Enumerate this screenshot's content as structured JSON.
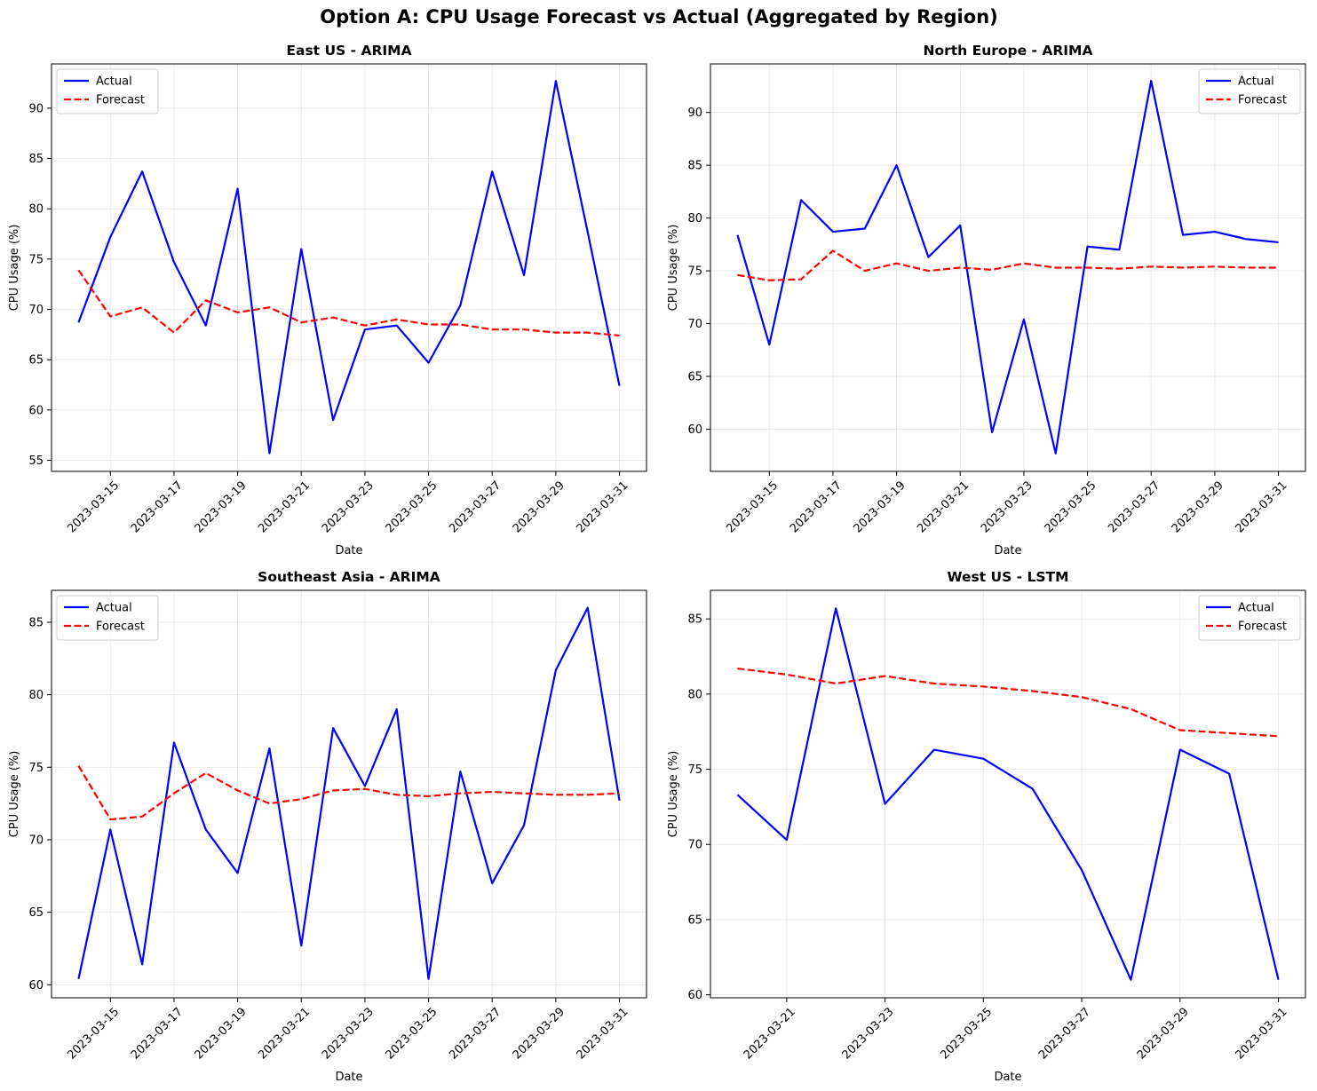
{
  "figure": {
    "title": "Option A: CPU Usage Forecast vs Actual (Aggregated by Region)"
  },
  "colors": {
    "actual": "#0000ff",
    "forecast": "#ff0000",
    "grid": "#e6e6e6"
  },
  "chart_data": [
    {
      "type": "line",
      "title": "East US - ARIMA",
      "xlabel": "Date",
      "ylabel": "CPU Usage (%)",
      "x_dates": [
        "2023-03-14",
        "2023-03-15",
        "2023-03-16",
        "2023-03-17",
        "2023-03-18",
        "2023-03-19",
        "2023-03-20",
        "2023-03-21",
        "2023-03-22",
        "2023-03-23",
        "2023-03-24",
        "2023-03-25",
        "2023-03-26",
        "2023-03-27",
        "2023-03-28",
        "2023-03-29",
        "2023-03-30",
        "2023-03-31"
      ],
      "x_ticks": [
        "2023-03-15",
        "2023-03-17",
        "2023-03-19",
        "2023-03-21",
        "2023-03-23",
        "2023-03-25",
        "2023-03-27",
        "2023-03-29",
        "2023-03-31"
      ],
      "xlim": [
        "2023-03-13.15",
        "2023-03-31.85"
      ],
      "ylim": [
        53.9,
        94.4
      ],
      "y_ticks": [
        55,
        60,
        65,
        70,
        75,
        80,
        85,
        90
      ],
      "legend": "upper-left",
      "grid": true,
      "series": [
        {
          "name": "Actual",
          "style": "solid",
          "values": [
            68.7,
            77.2,
            83.7,
            74.7,
            68.4,
            82.0,
            55.7,
            76.0,
            59.0,
            68.0,
            68.4,
            64.7,
            70.4,
            83.7,
            73.4,
            92.7,
            77.7,
            62.4
          ]
        },
        {
          "name": "Forecast",
          "style": "dashed",
          "values": [
            73.9,
            69.3,
            70.2,
            67.7,
            70.9,
            69.7,
            70.2,
            68.7,
            69.2,
            68.4,
            69.0,
            68.5,
            68.5,
            68.0,
            68.0,
            67.7,
            67.7,
            67.4
          ]
        }
      ]
    },
    {
      "type": "line",
      "title": "North Europe - ARIMA",
      "xlabel": "Date",
      "ylabel": "CPU Usage (%)",
      "x_dates": [
        "2023-03-14",
        "2023-03-15",
        "2023-03-16",
        "2023-03-17",
        "2023-03-18",
        "2023-03-19",
        "2023-03-20",
        "2023-03-21",
        "2023-03-22",
        "2023-03-23",
        "2023-03-24",
        "2023-03-25",
        "2023-03-26",
        "2023-03-27",
        "2023-03-28",
        "2023-03-29",
        "2023-03-30",
        "2023-03-31"
      ],
      "x_ticks": [
        "2023-03-15",
        "2023-03-17",
        "2023-03-19",
        "2023-03-21",
        "2023-03-23",
        "2023-03-25",
        "2023-03-27",
        "2023-03-29",
        "2023-03-31"
      ],
      "xlim": [
        "2023-03-13.15",
        "2023-03-31.85"
      ],
      "ylim": [
        56.0,
        94.6
      ],
      "y_ticks": [
        60,
        65,
        70,
        75,
        80,
        85,
        90
      ],
      "legend": "upper-right",
      "grid": true,
      "series": [
        {
          "name": "Actual",
          "style": "solid",
          "values": [
            78.4,
            68.0,
            81.7,
            78.7,
            79.0,
            85.0,
            76.3,
            79.3,
            59.7,
            70.4,
            57.7,
            77.3,
            77.0,
            93.0,
            78.4,
            78.7,
            78.0,
            77.7
          ]
        },
        {
          "name": "Forecast",
          "style": "dashed",
          "values": [
            74.6,
            74.1,
            74.2,
            76.9,
            75.0,
            75.7,
            75.0,
            75.3,
            75.1,
            75.7,
            75.3,
            75.3,
            75.2,
            75.4,
            75.3,
            75.4,
            75.3,
            75.3
          ]
        }
      ]
    },
    {
      "type": "line",
      "title": "Southeast Asia - ARIMA",
      "xlabel": "Date",
      "ylabel": "CPU Usage (%)",
      "x_dates": [
        "2023-03-14",
        "2023-03-15",
        "2023-03-16",
        "2023-03-17",
        "2023-03-18",
        "2023-03-19",
        "2023-03-20",
        "2023-03-21",
        "2023-03-22",
        "2023-03-23",
        "2023-03-24",
        "2023-03-25",
        "2023-03-26",
        "2023-03-27",
        "2023-03-28",
        "2023-03-29",
        "2023-03-30",
        "2023-03-31"
      ],
      "x_ticks": [
        "2023-03-15",
        "2023-03-17",
        "2023-03-19",
        "2023-03-21",
        "2023-03-23",
        "2023-03-25",
        "2023-03-27",
        "2023-03-29",
        "2023-03-31"
      ],
      "xlim": [
        "2023-03-13.15",
        "2023-03-31.85"
      ],
      "ylim": [
        59.1,
        87.2
      ],
      "y_ticks": [
        60,
        65,
        70,
        75,
        80,
        85
      ],
      "legend": "upper-left",
      "grid": true,
      "series": [
        {
          "name": "Actual",
          "style": "solid",
          "values": [
            60.4,
            70.7,
            61.4,
            76.7,
            70.7,
            67.7,
            76.3,
            62.7,
            77.7,
            73.7,
            79.0,
            60.4,
            74.7,
            67.0,
            71.0,
            81.7,
            86.0,
            72.7
          ]
        },
        {
          "name": "Forecast",
          "style": "dashed",
          "values": [
            75.1,
            71.4,
            71.6,
            73.2,
            74.6,
            73.4,
            72.5,
            72.8,
            73.4,
            73.5,
            73.1,
            73.0,
            73.2,
            73.3,
            73.2,
            73.1,
            73.1,
            73.2
          ]
        }
      ]
    },
    {
      "type": "line",
      "title": "West US - LSTM",
      "xlabel": "Date",
      "ylabel": "CPU Usage (%)",
      "x_dates": [
        "2023-03-20",
        "2023-03-21",
        "2023-03-22",
        "2023-03-23",
        "2023-03-24",
        "2023-03-25",
        "2023-03-26",
        "2023-03-27",
        "2023-03-28",
        "2023-03-29",
        "2023-03-30",
        "2023-03-31"
      ],
      "x_ticks": [
        "2023-03-21",
        "2023-03-23",
        "2023-03-25",
        "2023-03-27",
        "2023-03-29",
        "2023-03-31"
      ],
      "xlim": [
        "2023-03-19.45",
        "2023-03-31.55"
      ],
      "ylim": [
        59.8,
        86.9
      ],
      "y_ticks": [
        60,
        65,
        70,
        75,
        80,
        85
      ],
      "legend": "upper-right",
      "grid": true,
      "series": [
        {
          "name": "Actual",
          "style": "solid",
          "values": [
            73.3,
            70.3,
            85.7,
            72.7,
            76.3,
            75.7,
            73.7,
            68.3,
            61.0,
            76.3,
            74.7,
            61.0
          ]
        },
        {
          "name": "Forecast",
          "style": "dashed",
          "values": [
            81.7,
            81.3,
            80.7,
            81.2,
            80.7,
            80.5,
            80.2,
            79.8,
            79.0,
            77.6,
            77.4,
            77.2
          ]
        }
      ]
    }
  ]
}
